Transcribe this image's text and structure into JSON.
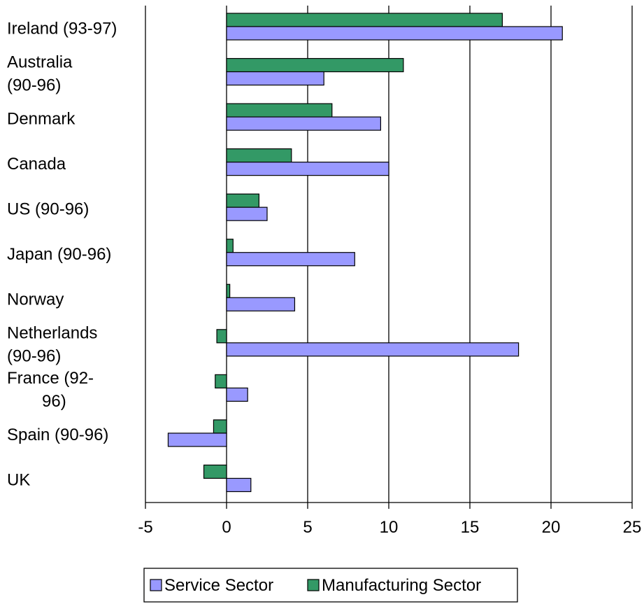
{
  "chart_data": {
    "type": "bar",
    "orientation": "horizontal",
    "categories": [
      "Ireland (93-97)",
      "Australia (90-96)",
      "Denmark",
      "Canada",
      "US (90-96)",
      "Japan (90-96)",
      "Norway",
      "Netherlands (90-96)",
      "France (92-96)",
      "Spain (90-96)",
      "UK"
    ],
    "category_lines": [
      [
        "Ireland (93-97)"
      ],
      [
        "Australia",
        "(90-96)"
      ],
      [
        "Denmark"
      ],
      [
        "Canada"
      ],
      [
        "US (90-96)"
      ],
      [
        "Japan (90-96)"
      ],
      [
        "Norway"
      ],
      [
        "Netherlands",
        "(90-96)"
      ],
      [
        "France (92-",
        "96)"
      ],
      [
        "Spain (90-96)"
      ],
      [
        "UK"
      ]
    ],
    "series": [
      {
        "name": "Service Sector",
        "color": "#9999ff",
        "values": [
          20.7,
          6.0,
          9.5,
          10.0,
          2.5,
          7.9,
          4.2,
          18.0,
          1.3,
          -3.6,
          1.5
        ]
      },
      {
        "name": "Manufacturing Sector",
        "color": "#339966",
        "values": [
          17.0,
          10.9,
          6.5,
          4.0,
          2.0,
          0.4,
          0.2,
          -0.6,
          -0.7,
          -0.8,
          -1.4
        ]
      }
    ],
    "xlim": [
      -5,
      25
    ],
    "xticks": [
      -5,
      0,
      5,
      10,
      15,
      20,
      25
    ],
    "title": "",
    "xlabel": "",
    "ylabel": "",
    "grid": "vertical",
    "legend_position": "bottom"
  }
}
